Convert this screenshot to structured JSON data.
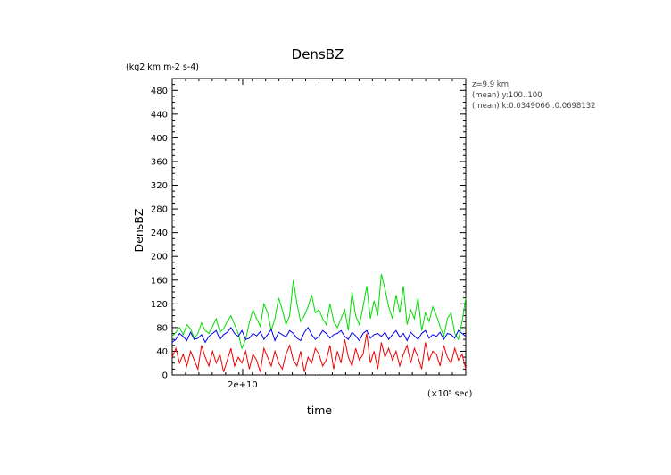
{
  "chart_data": {
    "type": "line",
    "title": "DensBZ",
    "units_label": "(kg2 km.m-2 s-4)",
    "xlabel": "time",
    "ylabel": "DensBZ",
    "x_scale_label": "(×10⁵ sec)",
    "x_tick_labels": [
      "2e+10"
    ],
    "ylim": [
      0,
      500
    ],
    "y_ticks": [
      0,
      40,
      80,
      120,
      160,
      200,
      240,
      280,
      320,
      360,
      400,
      440,
      480
    ],
    "grid": false,
    "info": [
      "z=9.9 km",
      "(mean) y:100..100",
      "(mean) k:0.0349066..0.0698132"
    ],
    "x": [
      0,
      1,
      2,
      3,
      4,
      5,
      6,
      7,
      8,
      9,
      10,
      11,
      12,
      13,
      14,
      15,
      16,
      17,
      18,
      19,
      20,
      21,
      22,
      23,
      24,
      25,
      26,
      27,
      28,
      29,
      30,
      31,
      32,
      33,
      34,
      35,
      36,
      37,
      38,
      39,
      40,
      41,
      42,
      43,
      44,
      45,
      46,
      47,
      48,
      49,
      50,
      51,
      52,
      53,
      54,
      55,
      56,
      57,
      58,
      59,
      60,
      61,
      62,
      63,
      64,
      65,
      66,
      67,
      68,
      69,
      70,
      71,
      72,
      73,
      74,
      75,
      76,
      77,
      78,
      79,
      80
    ],
    "series": [
      {
        "color": "#00dd00",
        "values": [
          65,
          72,
          80,
          68,
          85,
          78,
          62,
          70,
          88,
          75,
          70,
          82,
          95,
          72,
          78,
          90,
          100,
          85,
          70,
          45,
          60,
          88,
          110,
          95,
          82,
          120,
          105,
          75,
          95,
          130,
          110,
          85,
          100,
          160,
          120,
          90,
          100,
          115,
          135,
          105,
          110,
          95,
          85,
          120,
          90,
          80,
          95,
          110,
          75,
          140,
          100,
          85,
          115,
          150,
          95,
          125,
          100,
          170,
          145,
          115,
          95,
          135,
          105,
          150,
          85,
          110,
          95,
          130,
          75,
          105,
          90,
          115,
          100,
          82,
          65,
          95,
          105,
          70,
          60,
          90,
          130
        ],
        "stroke_width": 1
      },
      {
        "color": "#0000ee",
        "values": [
          55,
          60,
          70,
          65,
          58,
          72,
          60,
          62,
          68,
          55,
          65,
          70,
          75,
          60,
          68,
          72,
          80,
          70,
          65,
          75,
          60,
          62,
          70,
          66,
          73,
          60,
          68,
          77,
          58,
          72,
          68,
          64,
          75,
          70,
          62,
          58,
          72,
          80,
          68,
          60,
          65,
          75,
          70,
          62,
          68,
          70,
          75,
          65,
          60,
          72,
          66,
          58,
          70,
          75,
          62,
          68,
          70,
          65,
          72,
          60,
          68,
          75,
          64,
          70,
          58,
          72,
          66,
          60,
          70,
          75,
          62,
          68,
          65,
          72,
          60,
          70,
          68,
          62,
          75,
          70,
          65
        ],
        "stroke_width": 1
      },
      {
        "color": "#ee0000",
        "values": [
          30,
          45,
          20,
          35,
          15,
          40,
          25,
          10,
          50,
          30,
          15,
          40,
          20,
          35,
          5,
          25,
          45,
          15,
          30,
          20,
          40,
          10,
          35,
          25,
          5,
          45,
          30,
          15,
          40,
          20,
          10,
          35,
          50,
          25,
          15,
          40,
          5,
          30,
          20,
          45,
          35,
          15,
          25,
          50,
          10,
          40,
          20,
          60,
          30,
          15,
          45,
          25,
          35,
          70,
          20,
          40,
          10,
          55,
          30,
          45,
          25,
          40,
          15,
          35,
          50,
          20,
          45,
          30,
          10,
          55,
          25,
          40,
          35,
          15,
          50,
          30,
          20,
          45,
          25,
          35,
          10
        ],
        "stroke_width": 1
      }
    ]
  }
}
